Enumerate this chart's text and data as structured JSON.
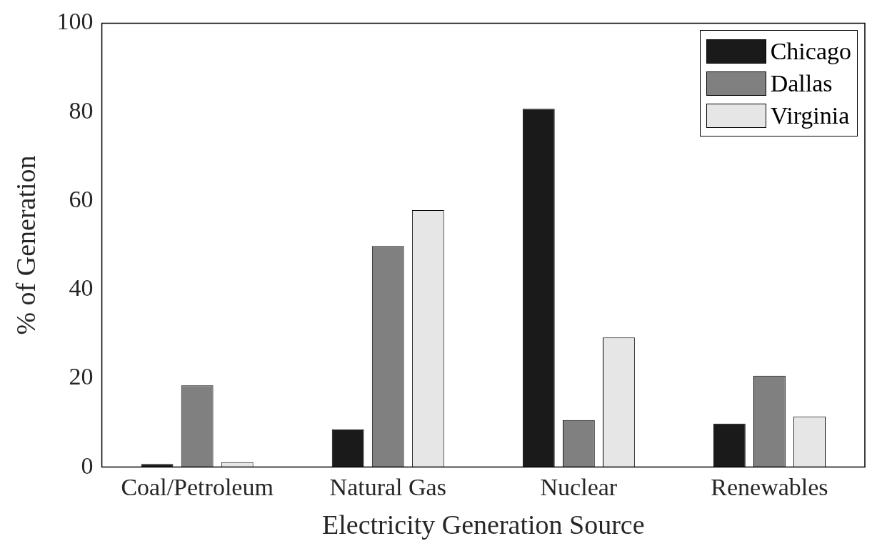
{
  "chart_data": {
    "type": "bar",
    "xlabel": "Electricity Generation Source",
    "ylabel": "% of Generation",
    "categories": [
      "Coal/Petroleum",
      "Natural Gas",
      "Nuclear",
      "Renewables"
    ],
    "series": [
      {
        "name": "Chicago",
        "color": "#1a1a1a",
        "values": [
          0.7,
          8.5,
          80.7,
          9.8
        ]
      },
      {
        "name": "Dallas",
        "color": "#808080",
        "values": [
          18.4,
          49.8,
          10.6,
          20.6
        ]
      },
      {
        "name": "Virginia",
        "color": "#e6e6e6",
        "values": [
          1.1,
          57.9,
          29.2,
          11.4
        ]
      }
    ],
    "ylim": [
      0,
      100
    ],
    "yticks": [
      0,
      20,
      40,
      60,
      80,
      100
    ],
    "grid": false,
    "legend": "top right"
  }
}
